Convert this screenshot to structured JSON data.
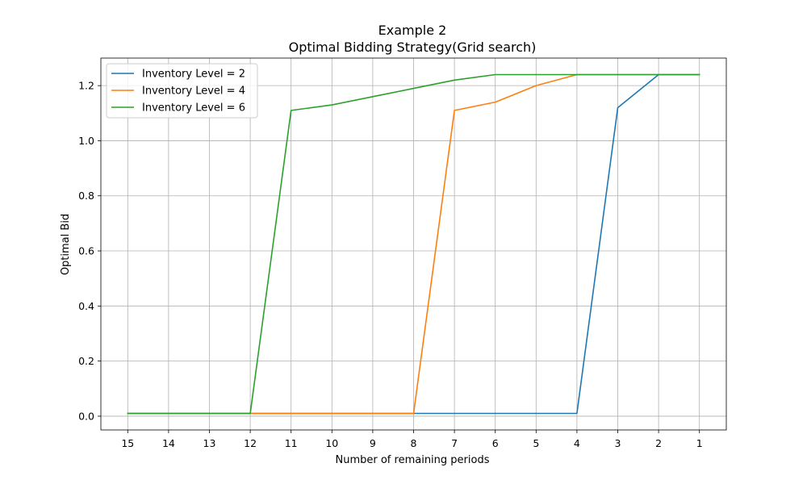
{
  "chart_data": {
    "type": "line",
    "title": "Example 2",
    "subtitle": "Optimal Bidding Strategy(Grid search)",
    "xlabel": "Number of remaining periods",
    "ylabel": "Optimal Bid",
    "x": [
      15,
      14,
      13,
      12,
      11,
      10,
      9,
      8,
      7,
      6,
      5,
      4,
      3,
      2,
      1
    ],
    "x_tick_labels": [
      "15",
      "14",
      "13",
      "12",
      "11",
      "10",
      "9",
      "8",
      "7",
      "6",
      "5",
      "4",
      "3",
      "2",
      "1"
    ],
    "x_reversed": true,
    "ylim": [
      -0.05,
      1.3
    ],
    "y_ticks": [
      0.0,
      0.2,
      0.4,
      0.6,
      0.8,
      1.0,
      1.2
    ],
    "y_tick_labels": [
      "0.0",
      "0.2",
      "0.4",
      "0.6",
      "0.8",
      "1.0",
      "1.2"
    ],
    "grid": true,
    "legend_position": "top-left",
    "series": [
      {
        "name": "Inventory Level = 2",
        "color": "#1f77b4",
        "values": [
          0.01,
          0.01,
          0.01,
          0.01,
          0.01,
          0.01,
          0.01,
          0.01,
          0.01,
          0.01,
          0.01,
          0.01,
          1.12,
          1.24,
          1.24
        ]
      },
      {
        "name": "Inventory Level = 4",
        "color": "#ff7f0e",
        "values": [
          0.01,
          0.01,
          0.01,
          0.01,
          0.01,
          0.01,
          0.01,
          0.01,
          1.11,
          1.14,
          1.2,
          1.24,
          1.24,
          1.24,
          1.24
        ]
      },
      {
        "name": "Inventory Level = 6",
        "color": "#2ca02c",
        "values": [
          0.01,
          0.01,
          0.01,
          0.01,
          1.11,
          1.13,
          1.16,
          1.19,
          1.22,
          1.24,
          1.24,
          1.24,
          1.24,
          1.24,
          1.24
        ]
      }
    ]
  }
}
